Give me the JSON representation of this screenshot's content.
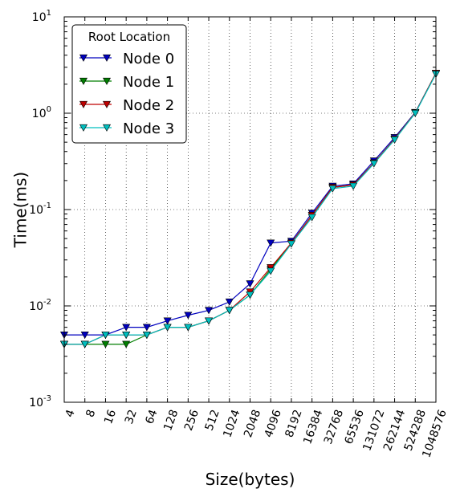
{
  "chart_data": {
    "type": "line",
    "title": "",
    "xlabel": "Size(bytes)",
    "ylabel": "Time(ms)",
    "yscale": "log",
    "ylim": [
      0.001,
      10
    ],
    "y_ticks": [
      {
        "value": 0.001,
        "base": "10",
        "exp": "-3"
      },
      {
        "value": 0.01,
        "base": "10",
        "exp": "-2"
      },
      {
        "value": 0.1,
        "base": "10",
        "exp": "-1"
      },
      {
        "value": 1,
        "base": "10",
        "exp": "0"
      },
      {
        "value": 10,
        "base": "10",
        "exp": "1"
      }
    ],
    "grid": true,
    "legend_title": "Root Location",
    "legend_position": "top-left",
    "categories": [
      "4",
      "8",
      "16",
      "32",
      "64",
      "128",
      "256",
      "512",
      "1024",
      "2048",
      "4096",
      "8192",
      "16384",
      "32768",
      "65536",
      "131072",
      "262144",
      "524288",
      "1048576"
    ],
    "series": [
      {
        "name": "Node 0",
        "color": "#0000bf",
        "values": [
          0.005,
          0.005,
          0.005,
          0.006,
          0.006,
          0.007,
          0.008,
          0.009,
          0.011,
          0.017,
          0.045,
          0.047,
          0.092,
          0.175,
          0.185,
          0.32,
          0.56,
          1.02,
          2.6
        ]
      },
      {
        "name": "Node 1",
        "color": "#007f00",
        "values": [
          0.004,
          0.004,
          0.004,
          0.004,
          0.005,
          0.006,
          0.006,
          0.007,
          0.009,
          0.013,
          0.024,
          0.045,
          0.087,
          0.17,
          0.18,
          0.305,
          0.54,
          1.01,
          2.6
        ]
      },
      {
        "name": "Node 2",
        "color": "#bf0000",
        "values": [
          0.004,
          0.004,
          0.005,
          0.005,
          0.005,
          0.006,
          0.006,
          0.007,
          0.009,
          0.014,
          0.025,
          0.045,
          0.087,
          0.17,
          0.18,
          0.305,
          0.54,
          1.01,
          2.6
        ]
      },
      {
        "name": "Node 3",
        "color": "#00bfbf",
        "values": [
          0.004,
          0.004,
          0.005,
          0.005,
          0.005,
          0.006,
          0.006,
          0.007,
          0.009,
          0.013,
          0.023,
          0.044,
          0.083,
          0.165,
          0.175,
          0.3,
          0.53,
          1.0,
          2.55
        ]
      }
    ]
  }
}
